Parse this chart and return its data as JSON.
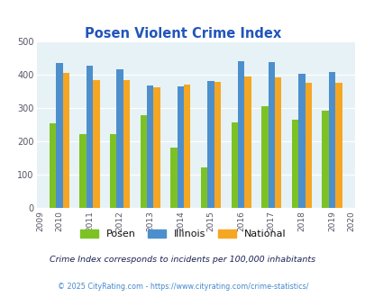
{
  "title": "Posen Violent Crime Index",
  "years": [
    2010,
    2011,
    2012,
    2013,
    2014,
    2015,
    2016,
    2017,
    2018,
    2019
  ],
  "posen": [
    255,
    222,
    222,
    280,
    182,
    122,
    258,
    307,
    265,
    292
  ],
  "illinois": [
    435,
    428,
    416,
    368,
    365,
    381,
    440,
    438,
    404,
    408
  ],
  "national": [
    405,
    385,
    385,
    363,
    372,
    380,
    396,
    393,
    376,
    376
  ],
  "colors": {
    "posen": "#7dc225",
    "illinois": "#4d8fcc",
    "national": "#f5a623"
  },
  "bg_color": "#e6f2f5",
  "ylim": [
    0,
    500
  ],
  "yticks": [
    0,
    100,
    200,
    300,
    400,
    500
  ],
  "subtitle": "Crime Index corresponds to incidents per 100,000 inhabitants",
  "footer": "© 2025 CityRating.com - https://www.cityrating.com/crime-statistics/",
  "title_color": "#2255bb",
  "subtitle_color": "#1a2255",
  "footer_color": "#4488cc",
  "legend_labels": [
    "Posen",
    "Illinois",
    "National"
  ]
}
